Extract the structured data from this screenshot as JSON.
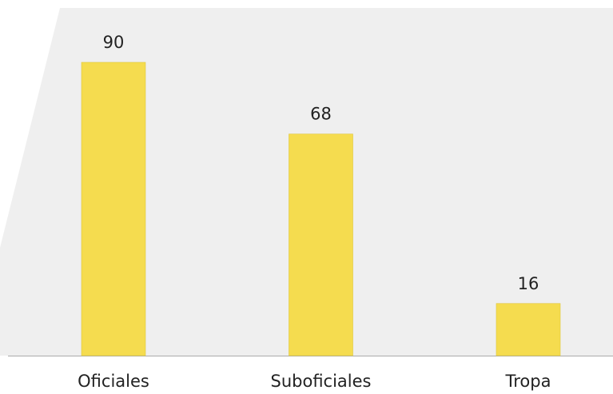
{
  "chart_data": {
    "type": "bar",
    "categories": [
      "Oficiales",
      "Suboficiales",
      "Tropa"
    ],
    "values": [
      90,
      68,
      16
    ],
    "color": "#f5dc4f"
  }
}
